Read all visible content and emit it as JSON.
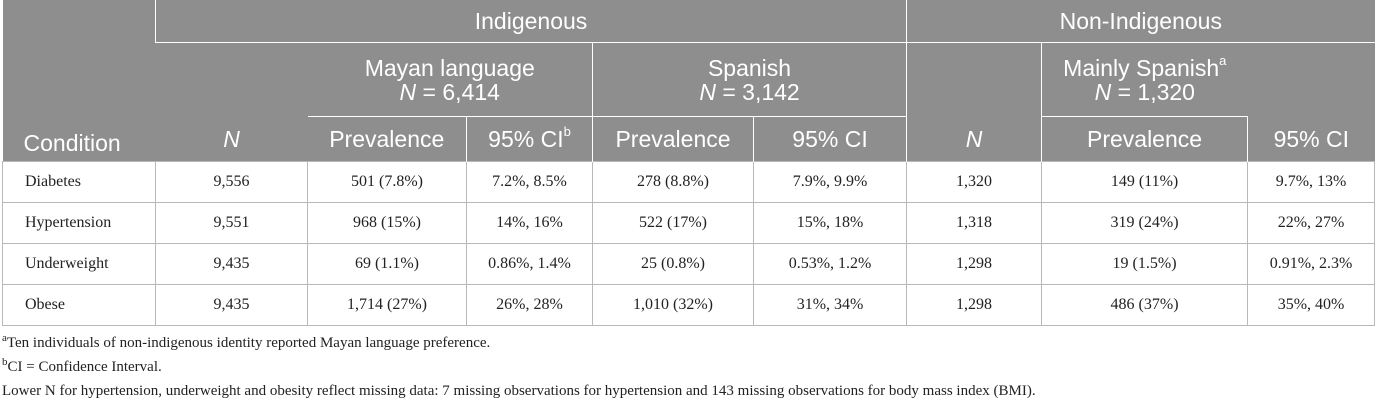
{
  "header": {
    "indigenous": "Indigenous",
    "non_indigenous": "Non-Indigenous",
    "mayan_language": "Mayan language",
    "mayan_n_label": "N",
    "mayan_n_value": " = 6,414",
    "spanish": "Spanish",
    "spanish_n_label": "N",
    "spanish_n_value": " = 3,142",
    "mainly_spanish": "Mainly Spanish",
    "mainly_spanish_sup": "a",
    "mainly_n_label": "N",
    "mainly_n_value": " = 1,320",
    "condition": "Condition",
    "n": "N",
    "prevalence": "Prevalence",
    "ci_95": "95% CI",
    "ci_95_sup": "b"
  },
  "rows": [
    {
      "condition": "Diabetes",
      "n_ind": "9,556",
      "mayan_prev": "501 (7.8%)",
      "mayan_ci": "7.2%, 8.5%",
      "spanish_prev": "278 (8.8%)",
      "spanish_ci": "7.9%, 9.9%",
      "n_non": "1,320",
      "non_prev": "149 (11%)",
      "non_ci": "9.7%, 13%"
    },
    {
      "condition": "Hypertension",
      "n_ind": "9,551",
      "mayan_prev": "968 (15%)",
      "mayan_ci": "14%, 16%",
      "spanish_prev": "522 (17%)",
      "spanish_ci": "15%, 18%",
      "n_non": "1,318",
      "non_prev": "319 (24%)",
      "non_ci": "22%, 27%"
    },
    {
      "condition": "Underweight",
      "n_ind": "9,435",
      "mayan_prev": "69 (1.1%)",
      "mayan_ci": "0.86%, 1.4%",
      "spanish_prev": "25 (0.8%)",
      "spanish_ci": "0.53%, 1.2%",
      "n_non": "1,298",
      "non_prev": "19 (1.5%)",
      "non_ci": "0.91%, 2.3%"
    },
    {
      "condition": "Obese",
      "n_ind": "9,435",
      "mayan_prev": "1,714 (27%)",
      "mayan_ci": "26%, 28%",
      "spanish_prev": "1,010 (32%)",
      "spanish_ci": "31%, 34%",
      "n_non": "1,298",
      "non_prev": "486 (37%)",
      "non_ci": "35%, 40%"
    }
  ],
  "footnotes": {
    "a_mark": "a",
    "a_text": "Ten individuals of non-indigenous identity reported Mayan language preference.",
    "b_mark": "b",
    "b_text": "CI = Confidence Interval.",
    "note": "Lower N for hypertension, underweight and obesity reflect missing data: 7 missing observations for hypertension and 143 missing observations for body mass index (BMI)."
  }
}
